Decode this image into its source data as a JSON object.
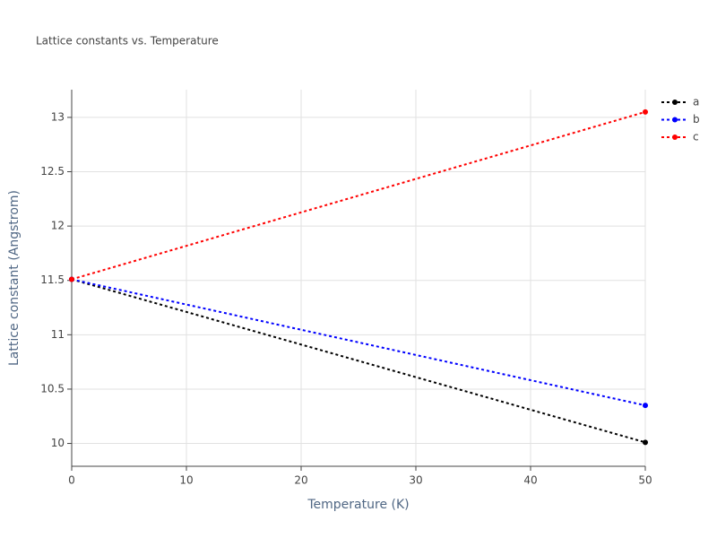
{
  "chart_data": {
    "type": "line",
    "title": "Lattice constants vs. Temperature",
    "x_label": "Temperature (K)",
    "y_label": "Lattice constant (Angstrom)",
    "x": [
      0,
      50
    ],
    "series": [
      {
        "name": "a",
        "color": "#000000",
        "values": [
          11.51,
          10.01
        ]
      },
      {
        "name": "b",
        "color": "#0000ff",
        "values": [
          11.51,
          10.35
        ]
      },
      {
        "name": "c",
        "color": "#ff0000",
        "values": [
          11.51,
          13.05
        ]
      }
    ],
    "xlim": [
      0,
      50
    ],
    "xticks": [
      0,
      10,
      20,
      30,
      40,
      50
    ],
    "ylim": [
      9.79,
      13.255
    ],
    "yticks": [
      10,
      10.5,
      11,
      11.5,
      12,
      12.5,
      13
    ],
    "grid": true,
    "legend": "top-right"
  }
}
